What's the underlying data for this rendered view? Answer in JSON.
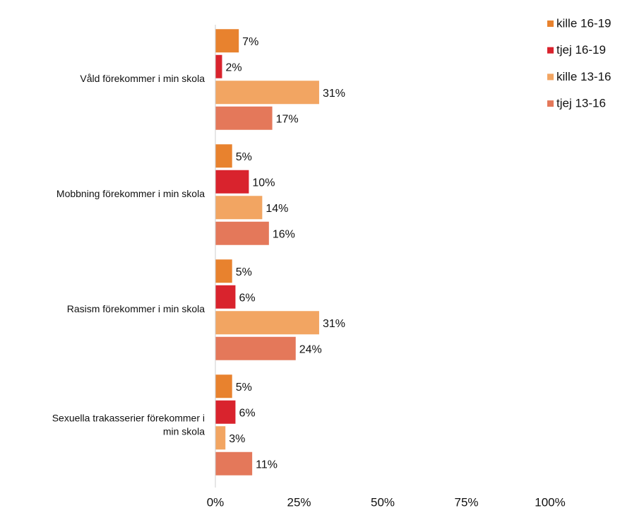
{
  "chart_data": {
    "type": "barh",
    "categories": [
      "Våld förekommer i min skola",
      "Mobbning förekommer i min skola",
      "Rasism förekommer i min skola",
      "Sexuella trakasserier förekommer i min skola"
    ],
    "series": [
      {
        "name": "kille 16-19",
        "color": "#e8822e",
        "values": [
          7,
          5,
          5,
          5
        ],
        "value_labels": [
          "7%",
          "5%",
          "5%",
          "5%"
        ]
      },
      {
        "name": "tjej 16-19",
        "color": "#d9232d",
        "values": [
          2,
          10,
          6,
          6
        ],
        "value_labels": [
          "2%",
          "10%",
          "6%",
          "6%"
        ]
      },
      {
        "name": "kille 13-16",
        "color": "#f2a562",
        "values": [
          31,
          14,
          31,
          3
        ],
        "value_labels": [
          "31%",
          "14%",
          "31%",
          "3%"
        ]
      },
      {
        "name": "tjej 13-16",
        "color": "#e4785a",
        "values": [
          17,
          16,
          24,
          11
        ],
        "value_labels": [
          "17%",
          "16%",
          "24%",
          "11%"
        ]
      }
    ],
    "xlim": [
      0,
      100
    ],
    "xticks": [
      {
        "value": 0,
        "label": "0%"
      },
      {
        "value": 25,
        "label": "25%"
      },
      {
        "value": 50,
        "label": "50%"
      },
      {
        "value": 75,
        "label": "75%"
      },
      {
        "value": 100,
        "label": "100%"
      }
    ],
    "legend": "top-right"
  }
}
